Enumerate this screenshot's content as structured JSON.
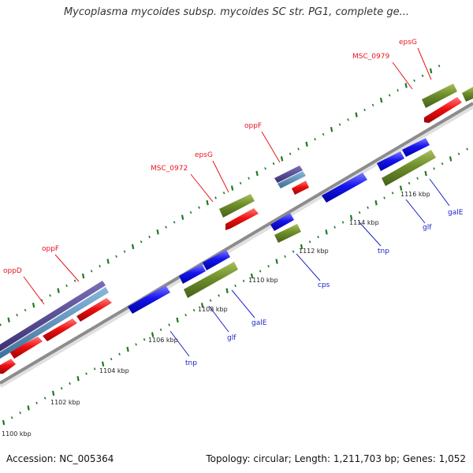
{
  "header": {
    "title": "Mycoplasma mycoides subsp. mycoides SC str. PG1, complete ge..."
  },
  "footer": {
    "accession": "Accession: NC_005364",
    "topology": "Topology: circular; Length: 1,211,703 bp; Genes: 1,052"
  },
  "colors": {
    "backbone": "#8c8c8c",
    "tick": "#1e7a1e",
    "gene_red": "#ee1111",
    "gene_blue": "#1515ee",
    "gene_green": "#6e8e2a",
    "gene_purple": "#4a3e88",
    "gene_steel": "#4f86b4",
    "label_red": "#e8141e",
    "label_blue": "#1a22c8"
  },
  "kbp_labels": [
    "1100 kbp",
    "1102 kbp",
    "1104 kbp",
    "1106 kbp",
    "1108 kbp",
    "1110 kbp",
    "1112 kbp",
    "1114 kbp",
    "1116 kbp"
  ],
  "gene_labels_top": [
    "oppD",
    "oppF",
    "MSC_0972",
    "epsG",
    "oppF",
    "MSC_0979",
    "epsG"
  ],
  "gene_labels_bottom": [
    "tnp",
    "glf",
    "galE",
    "cps",
    "tnp",
    "glf",
    "galE"
  ]
}
